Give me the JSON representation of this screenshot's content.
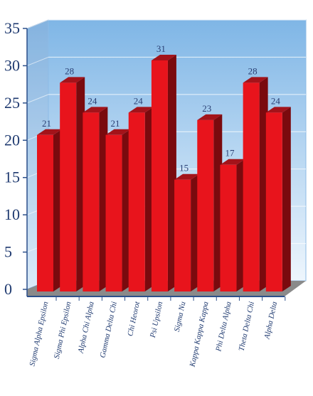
{
  "chart_data": {
    "type": "bar",
    "categories": [
      "Sigma Alpha Epsilon",
      "Sigma Phi Epsilon",
      "Alpha Chi Alpha",
      "Gamma Delta Chi",
      "Chi Heorot",
      "Psi Upsilon",
      "Sigma Nu",
      "Kappa Kappa Kappa",
      "Phi Delta Alpha",
      "Theta Delta Chi",
      "Alpha Delta"
    ],
    "values": [
      21,
      28,
      24,
      21,
      24,
      31,
      15,
      23,
      17,
      28,
      24
    ],
    "yticks": [
      "0",
      "5",
      "10",
      "15",
      "20",
      "25",
      "30",
      "35"
    ],
    "ylim": [
      0,
      35
    ],
    "grid": true,
    "legend": "none",
    "colors": {
      "bar_front": "#e8141c",
      "bar_side": "#7a0a0e",
      "bar_top": "#a3131a",
      "back_wall_top": "#7fb6e6",
      "back_wall_bottom": "#eef6fd",
      "side_wall": "#6fa6da",
      "floor": "#8a8a8a",
      "value_label": "#2a3f73",
      "axis_text": "#1f3a70"
    }
  }
}
